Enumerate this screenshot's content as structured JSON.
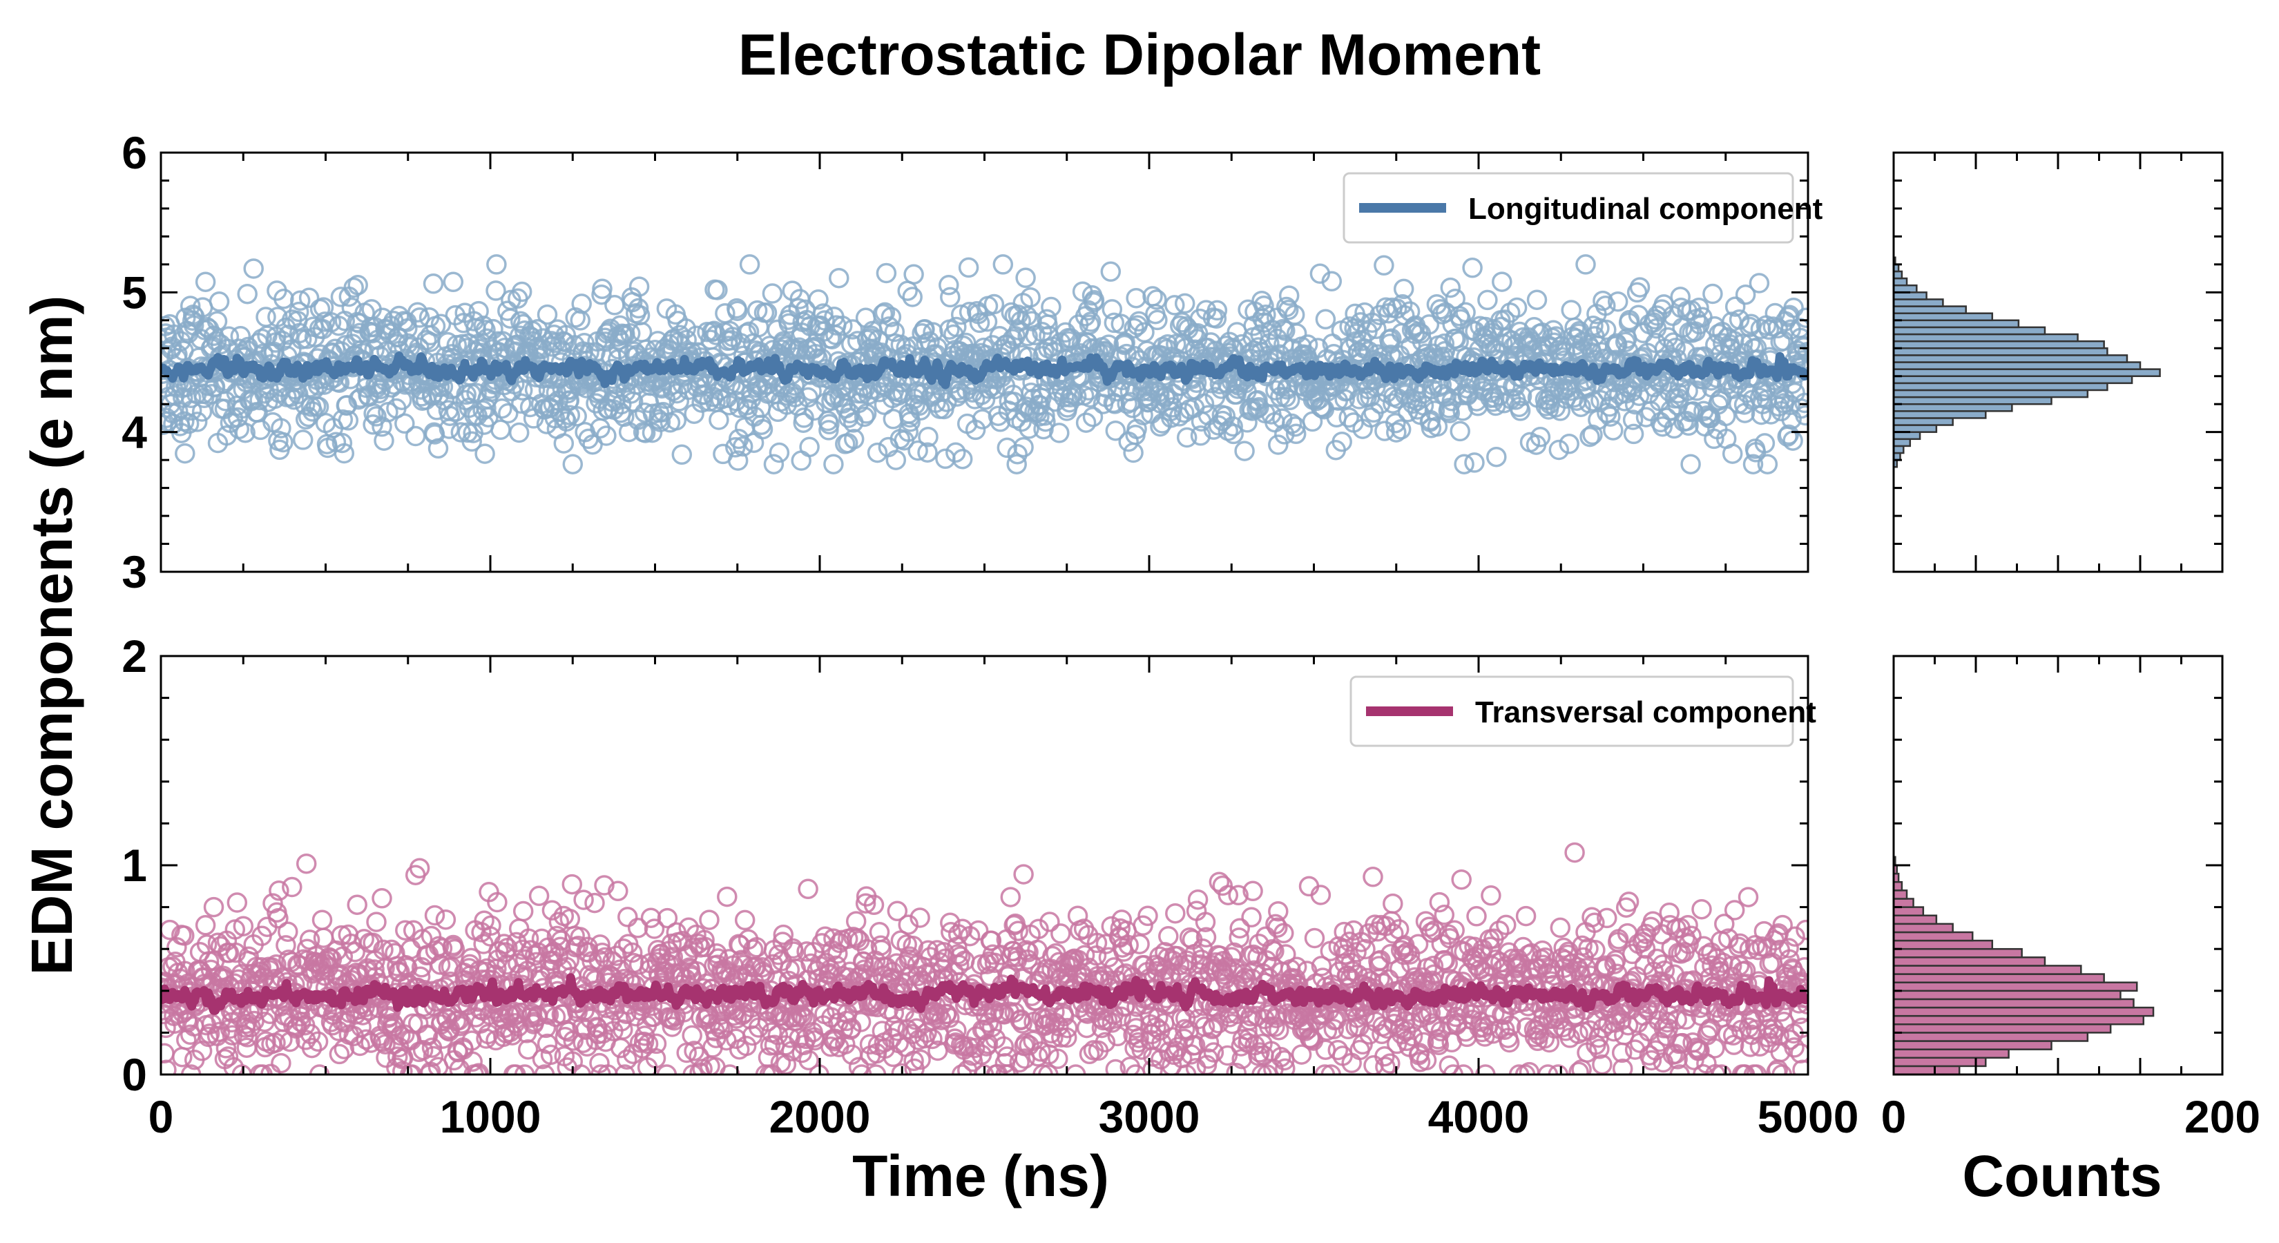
{
  "title": "Electrostatic Dipolar Moment",
  "ylabel": "EDM components (e nm)",
  "xlabel": "Time (ns)",
  "hist_xlabel": "Counts",
  "colors": {
    "longitudinal": "#4a78a8",
    "longitudinal_marker": "#8aabc9",
    "transversal": "#a6336f",
    "transversal_marker": "#c877a2",
    "axis": "#000000"
  },
  "chart_data": [
    {
      "type": "scatter",
      "panel": "top",
      "xlim": [
        0,
        5000
      ],
      "ylim": [
        3,
        6
      ],
      "xticks": [
        0,
        1000,
        2000,
        3000,
        4000,
        5000
      ],
      "yticks": [
        3,
        4,
        5,
        6
      ],
      "series": [
        {
          "name": "Longitudinal component",
          "kind": "moving-average line with scatter points",
          "n_points": 2500,
          "x_range": [
            0,
            5000
          ],
          "y_mean": 4.45,
          "y_std": 0.25,
          "y_range": [
            3.77,
            5.2
          ],
          "smoothed_mean": 4.45
        }
      ],
      "legend": "top-right"
    },
    {
      "type": "bar",
      "panel": "top-histogram",
      "orientation": "horizontal",
      "xlim": [
        0,
        200
      ],
      "ylim": [
        3,
        6
      ],
      "bins": [
        3.75,
        3.8,
        3.85,
        3.9,
        3.95,
        4.0,
        4.05,
        4.1,
        4.15,
        4.2,
        4.25,
        4.3,
        4.35,
        4.4,
        4.45,
        4.5,
        4.55,
        4.6,
        4.65,
        4.7,
        4.75,
        4.8,
        4.85,
        4.9,
        4.95,
        5.0,
        5.05,
        5.1,
        5.15,
        5.2
      ],
      "counts": [
        2,
        4,
        6,
        10,
        16,
        26,
        36,
        56,
        72,
        96,
        118,
        130,
        145,
        162,
        150,
        142,
        130,
        128,
        112,
        92,
        76,
        60,
        44,
        30,
        20,
        14,
        8,
        5,
        3,
        1
      ]
    },
    {
      "type": "scatter",
      "panel": "bottom",
      "xlim": [
        0,
        5000
      ],
      "ylim": [
        0,
        2
      ],
      "xticks": [
        0,
        1000,
        2000,
        3000,
        4000,
        5000
      ],
      "yticks": [
        0,
        1,
        2
      ],
      "series": [
        {
          "name": "Transversal component",
          "kind": "moving-average line with scatter points",
          "n_points": 2500,
          "x_range": [
            0,
            5000
          ],
          "y_mean": 0.38,
          "y_std": 0.19,
          "y_range": [
            0.0,
            1.17
          ],
          "smoothed_mean": 0.38
        }
      ],
      "legend": "top-right"
    },
    {
      "type": "bar",
      "panel": "bottom-histogram",
      "orientation": "horizontal",
      "xlim": [
        0,
        200
      ],
      "ylim": [
        0,
        2
      ],
      "bins": [
        0.0,
        0.04,
        0.08,
        0.12,
        0.16,
        0.2,
        0.24,
        0.28,
        0.32,
        0.36,
        0.4,
        0.44,
        0.48,
        0.52,
        0.56,
        0.6,
        0.64,
        0.68,
        0.72,
        0.76,
        0.8,
        0.84,
        0.88,
        0.92,
        0.96,
        1.0
      ],
      "counts": [
        40,
        56,
        70,
        96,
        118,
        132,
        152,
        158,
        146,
        138,
        148,
        128,
        114,
        92,
        78,
        60,
        48,
        36,
        26,
        18,
        12,
        8,
        5,
        3,
        2,
        1
      ]
    }
  ],
  "hist_xticks": [
    0,
    200
  ]
}
